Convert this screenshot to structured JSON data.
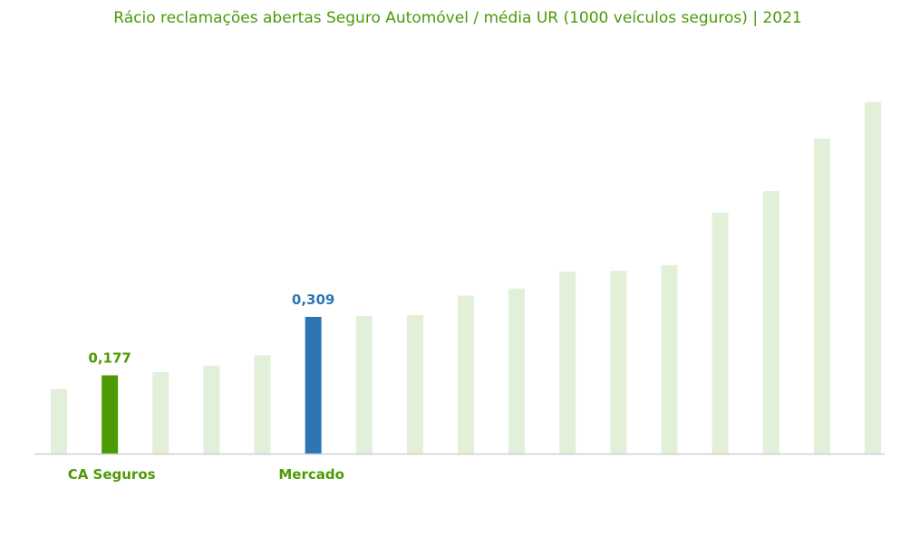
{
  "chart_data": {
    "type": "bar",
    "title": "Rácio reclamações abertas Seguro Automóvel / média UR (1000 veículos seguros) | 2021",
    "xlabel": "",
    "ylabel": "",
    "ylim": [
      0,
      0.8
    ],
    "grid": false,
    "categories": [
      "",
      "CA Seguros",
      "",
      "",
      "",
      "Mercado",
      "",
      "",
      "",
      "",
      "",
      "",
      "",
      "",
      "",
      "",
      ""
    ],
    "values": [
      0.146,
      0.177,
      0.184,
      0.199,
      0.222,
      0.309,
      0.311,
      0.313,
      0.357,
      0.373,
      0.411,
      0.413,
      0.426,
      0.545,
      0.593,
      0.712,
      0.795
    ],
    "data_labels": [
      "",
      "0,177",
      "",
      "",
      "",
      "0,309",
      "",
      "",
      "",
      "",
      "",
      "",
      "",
      "",
      "",
      "",
      ""
    ],
    "colors": {
      "default": "#e2efd9",
      "highlight_ca": "#4e9a06",
      "highlight_market": "#2e75b6",
      "ca_text": "#4e9a06",
      "market_text": "#2e75b6",
      "market_category_text": "#4e9a06",
      "axis": "#d0d0d0"
    },
    "highlights": {
      "1": "highlight_ca",
      "5": "highlight_market"
    }
  }
}
